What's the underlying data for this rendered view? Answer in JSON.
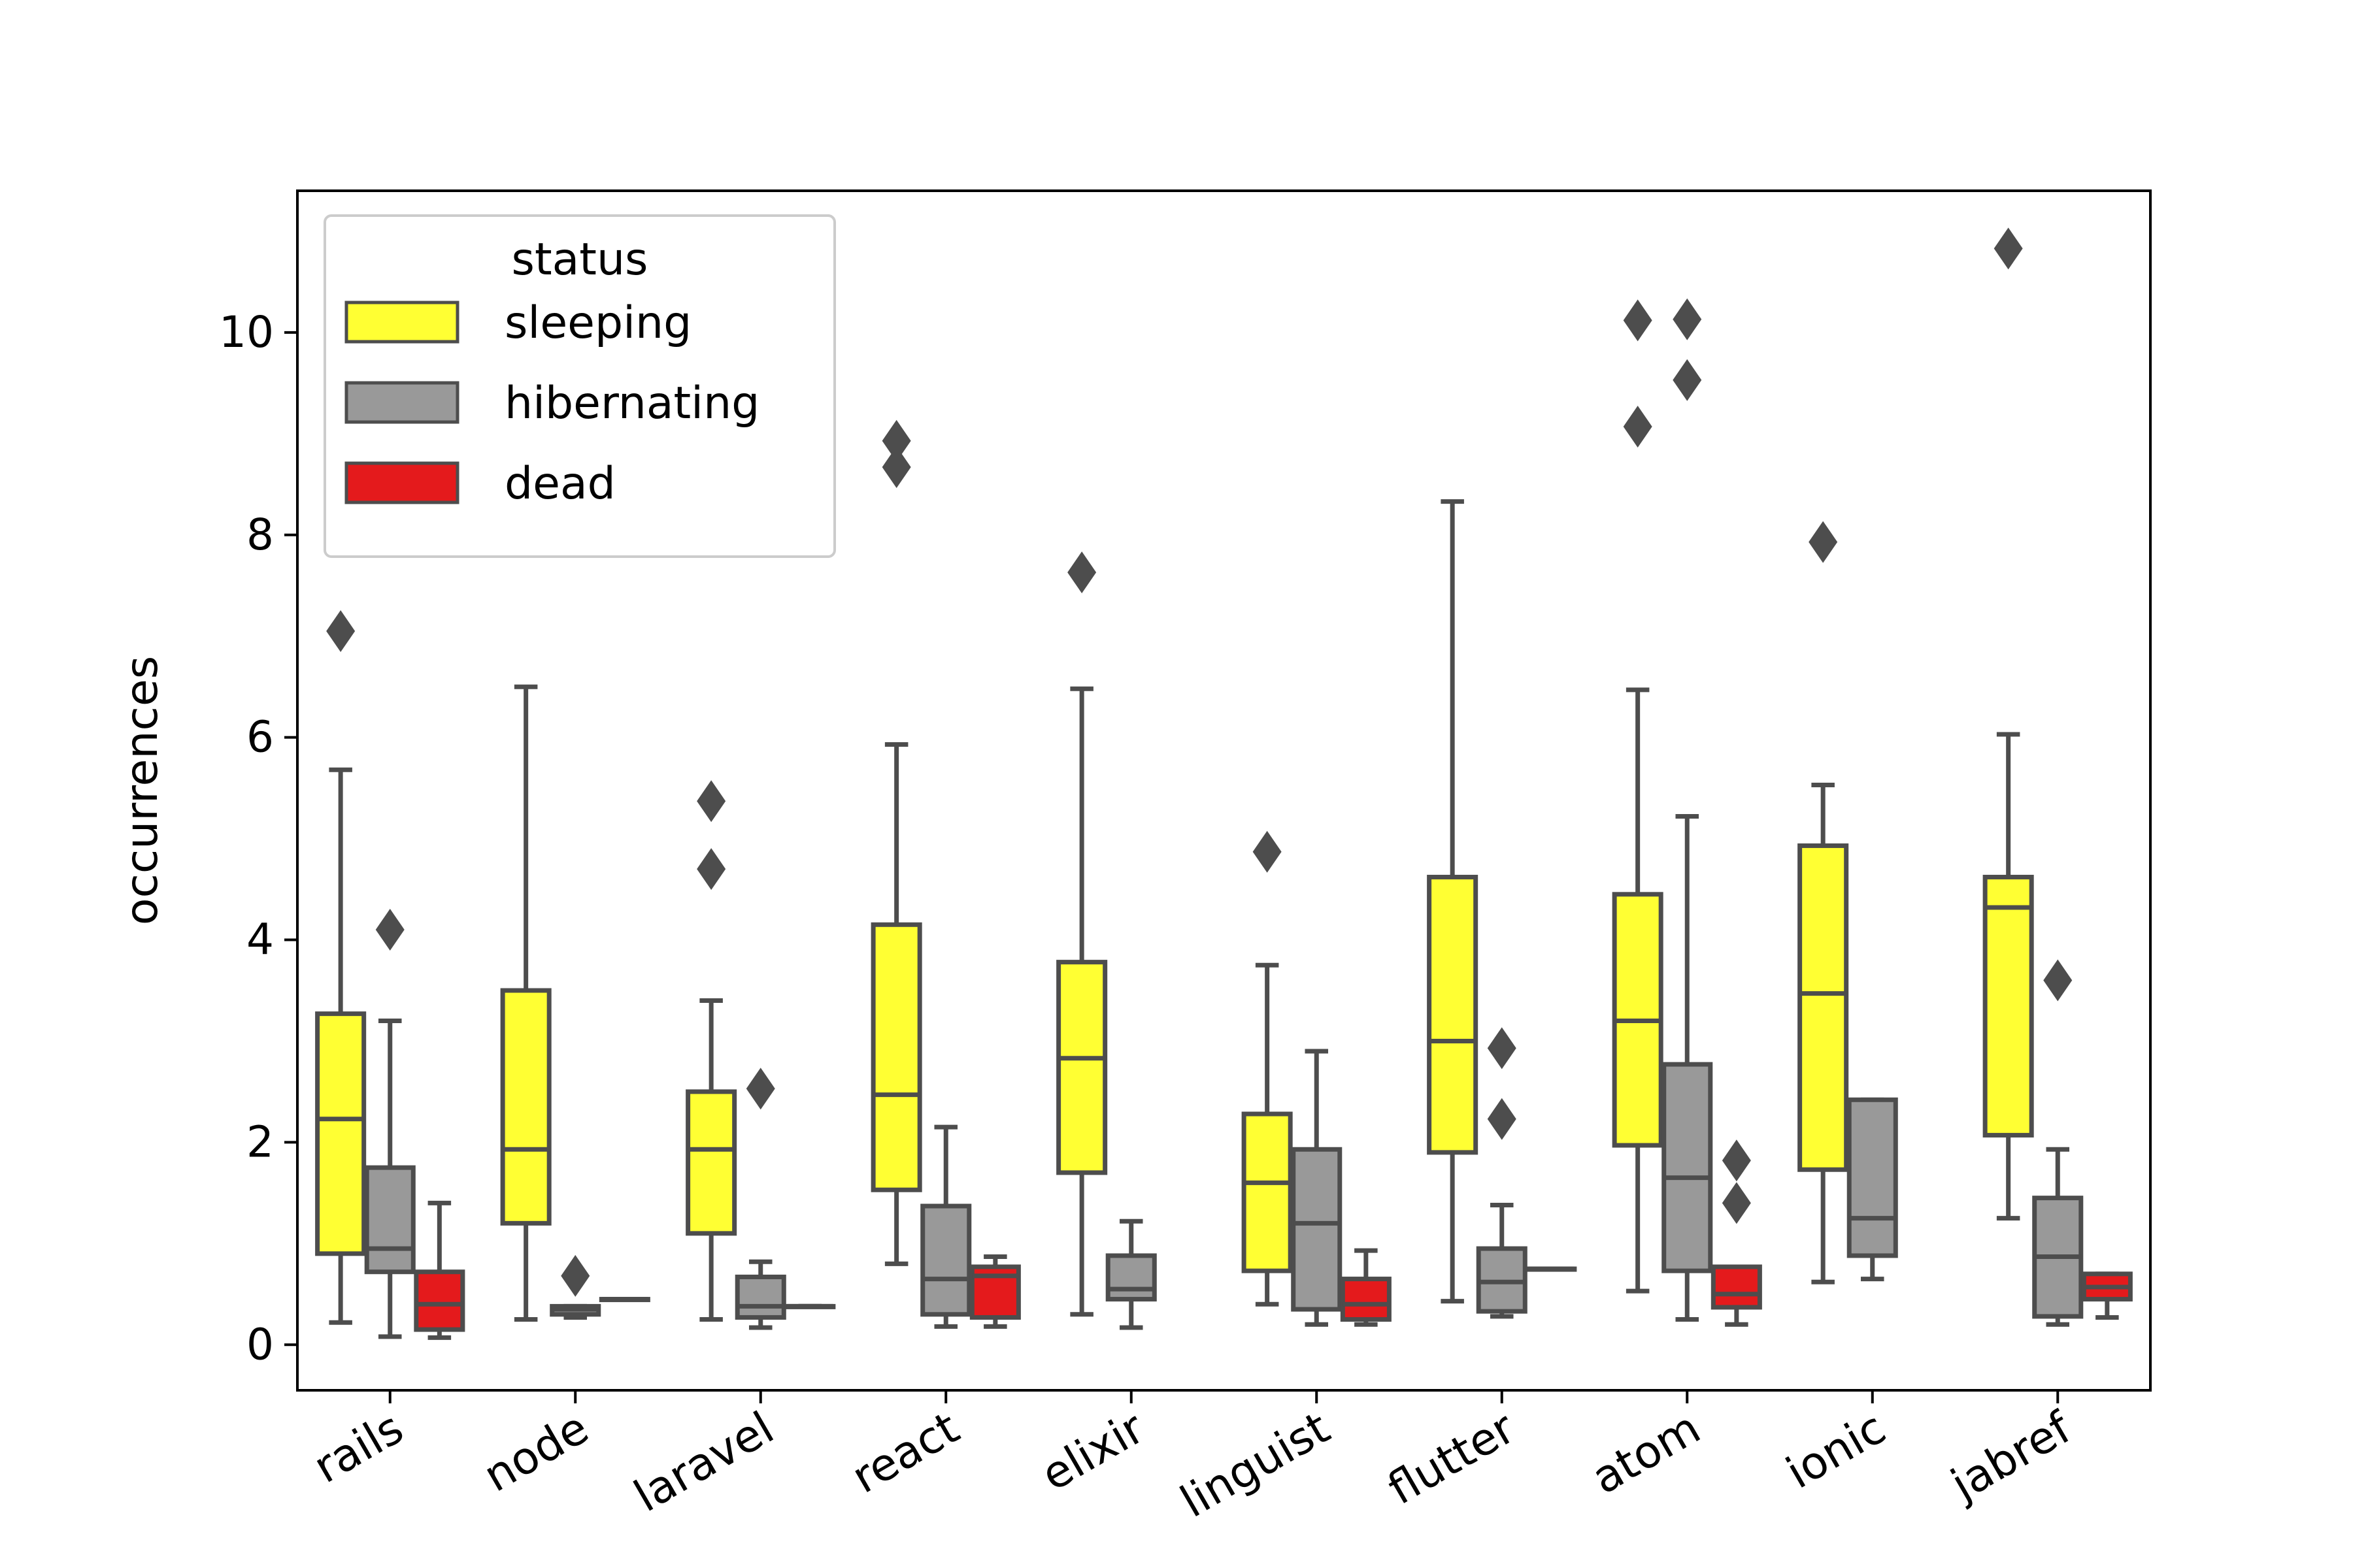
{
  "chart_data": {
    "type": "boxplot",
    "categories": [
      "rails",
      "node",
      "laravel",
      "react",
      "elixir",
      "linguist",
      "flutter",
      "atom",
      "ionic",
      "jabref"
    ],
    "ylabel": "occurrences",
    "xlabel": "",
    "ylim": [
      -0.45,
      11.4
    ],
    "yticks": [
      0,
      2,
      4,
      6,
      8,
      10
    ],
    "grid": false,
    "legend": {
      "title": "status",
      "placement": "top-left",
      "entries": [
        "sleeping",
        "hibernating",
        "dead"
      ]
    },
    "series": [
      {
        "name": "sleeping",
        "color": "#ffff33",
        "boxes": [
          {
            "whislo": 0.22,
            "q1": 0.9,
            "med": 2.23,
            "q3": 3.27,
            "whishi": 5.68,
            "fliers": [
              7.05
            ]
          },
          {
            "whislo": 0.25,
            "q1": 1.2,
            "med": 1.93,
            "q3": 3.5,
            "whishi": 6.5,
            "fliers": []
          },
          {
            "whislo": 0.25,
            "q1": 1.1,
            "med": 1.93,
            "q3": 2.5,
            "whishi": 3.4,
            "fliers": [
              4.7,
              5.37
            ]
          },
          {
            "whislo": 0.8,
            "q1": 1.53,
            "med": 2.47,
            "q3": 4.15,
            "whishi": 5.93,
            "fliers": [
              8.67,
              8.93
            ]
          },
          {
            "whislo": 0.3,
            "q1": 1.7,
            "med": 2.83,
            "q3": 3.78,
            "whishi": 6.48,
            "fliers": [
              7.63
            ]
          },
          {
            "whislo": 0.4,
            "q1": 0.73,
            "med": 1.6,
            "q3": 2.28,
            "whishi": 3.75,
            "fliers": [
              4.87
            ]
          },
          {
            "whislo": 0.43,
            "q1": 1.9,
            "med": 3.0,
            "q3": 4.62,
            "whishi": 8.33,
            "fliers": []
          },
          {
            "whislo": 0.53,
            "q1": 1.97,
            "med": 3.2,
            "q3": 4.45,
            "whishi": 6.47,
            "fliers": [
              9.07,
              10.12
            ]
          },
          {
            "whislo": 0.62,
            "q1": 1.73,
            "med": 3.47,
            "q3": 4.93,
            "whishi": 5.53,
            "fliers": [
              7.93
            ]
          },
          {
            "whislo": 1.25,
            "q1": 2.07,
            "med": 4.32,
            "q3": 4.62,
            "whishi": 6.03,
            "fliers": [
              10.83
            ]
          }
        ]
      },
      {
        "name": "hibernating",
        "color": "#999999",
        "boxes": [
          {
            "whislo": 0.08,
            "q1": 0.72,
            "med": 0.95,
            "q3": 1.75,
            "whishi": 3.2,
            "fliers": [
              4.1
            ]
          },
          {
            "whislo": 0.27,
            "q1": 0.3,
            "med": 0.35,
            "q3": 0.38,
            "whishi": 0.38,
            "fliers": [
              0.68
            ]
          },
          {
            "whislo": 0.17,
            "q1": 0.27,
            "med": 0.38,
            "q3": 0.67,
            "whishi": 0.82,
            "fliers": [
              2.53
            ]
          },
          {
            "whislo": 0.18,
            "q1": 0.3,
            "med": 0.65,
            "q3": 1.37,
            "whishi": 2.15,
            "fliers": []
          },
          {
            "whislo": 0.17,
            "q1": 0.45,
            "med": 0.55,
            "q3": 0.88,
            "whishi": 1.22,
            "fliers": []
          },
          {
            "whislo": 0.2,
            "q1": 0.35,
            "med": 1.2,
            "q3": 1.93,
            "whishi": 2.9,
            "fliers": []
          },
          {
            "whislo": 0.28,
            "q1": 0.33,
            "med": 0.62,
            "q3": 0.95,
            "whishi": 1.38,
            "fliers": [
              2.23,
              2.93
            ]
          },
          {
            "whislo": 0.25,
            "q1": 0.73,
            "med": 1.65,
            "q3": 2.77,
            "whishi": 5.22,
            "fliers": [
              9.53,
              10.13
            ]
          },
          {
            "whislo": 0.65,
            "q1": 0.88,
            "med": 1.25,
            "q3": 2.42,
            "whishi": 2.42,
            "fliers": []
          },
          {
            "whislo": 0.2,
            "q1": 0.28,
            "med": 0.87,
            "q3": 1.45,
            "whishi": 1.93,
            "fliers": [
              3.6
            ]
          }
        ]
      },
      {
        "name": "dead",
        "color": "#e41a1c",
        "boxes": [
          {
            "whislo": 0.07,
            "q1": 0.15,
            "med": 0.4,
            "q3": 0.72,
            "whishi": 1.4,
            "fliers": []
          },
          {
            "whislo": 0.45,
            "q1": 0.45,
            "med": 0.45,
            "q3": 0.45,
            "whishi": 0.45,
            "fliers": []
          },
          {
            "whislo": 0.38,
            "q1": 0.38,
            "med": 0.38,
            "q3": 0.38,
            "whishi": 0.38,
            "fliers": []
          },
          {
            "whislo": 0.18,
            "q1": 0.27,
            "med": 0.68,
            "q3": 0.77,
            "whishi": 0.87,
            "fliers": []
          },
          null,
          {
            "whislo": 0.2,
            "q1": 0.25,
            "med": 0.4,
            "q3": 0.65,
            "whishi": 0.93,
            "fliers": []
          },
          {
            "whislo": 0.75,
            "q1": 0.75,
            "med": 0.75,
            "q3": 0.75,
            "whishi": 0.75,
            "fliers": []
          },
          {
            "whislo": 0.2,
            "q1": 0.37,
            "med": 0.5,
            "q3": 0.77,
            "whishi": 0.77,
            "fliers": [
              1.4,
              1.82
            ]
          },
          null,
          {
            "whislo": 0.27,
            "q1": 0.45,
            "med": 0.57,
            "q3": 0.7,
            "whishi": 0.7,
            "fliers": []
          }
        ]
      }
    ]
  }
}
